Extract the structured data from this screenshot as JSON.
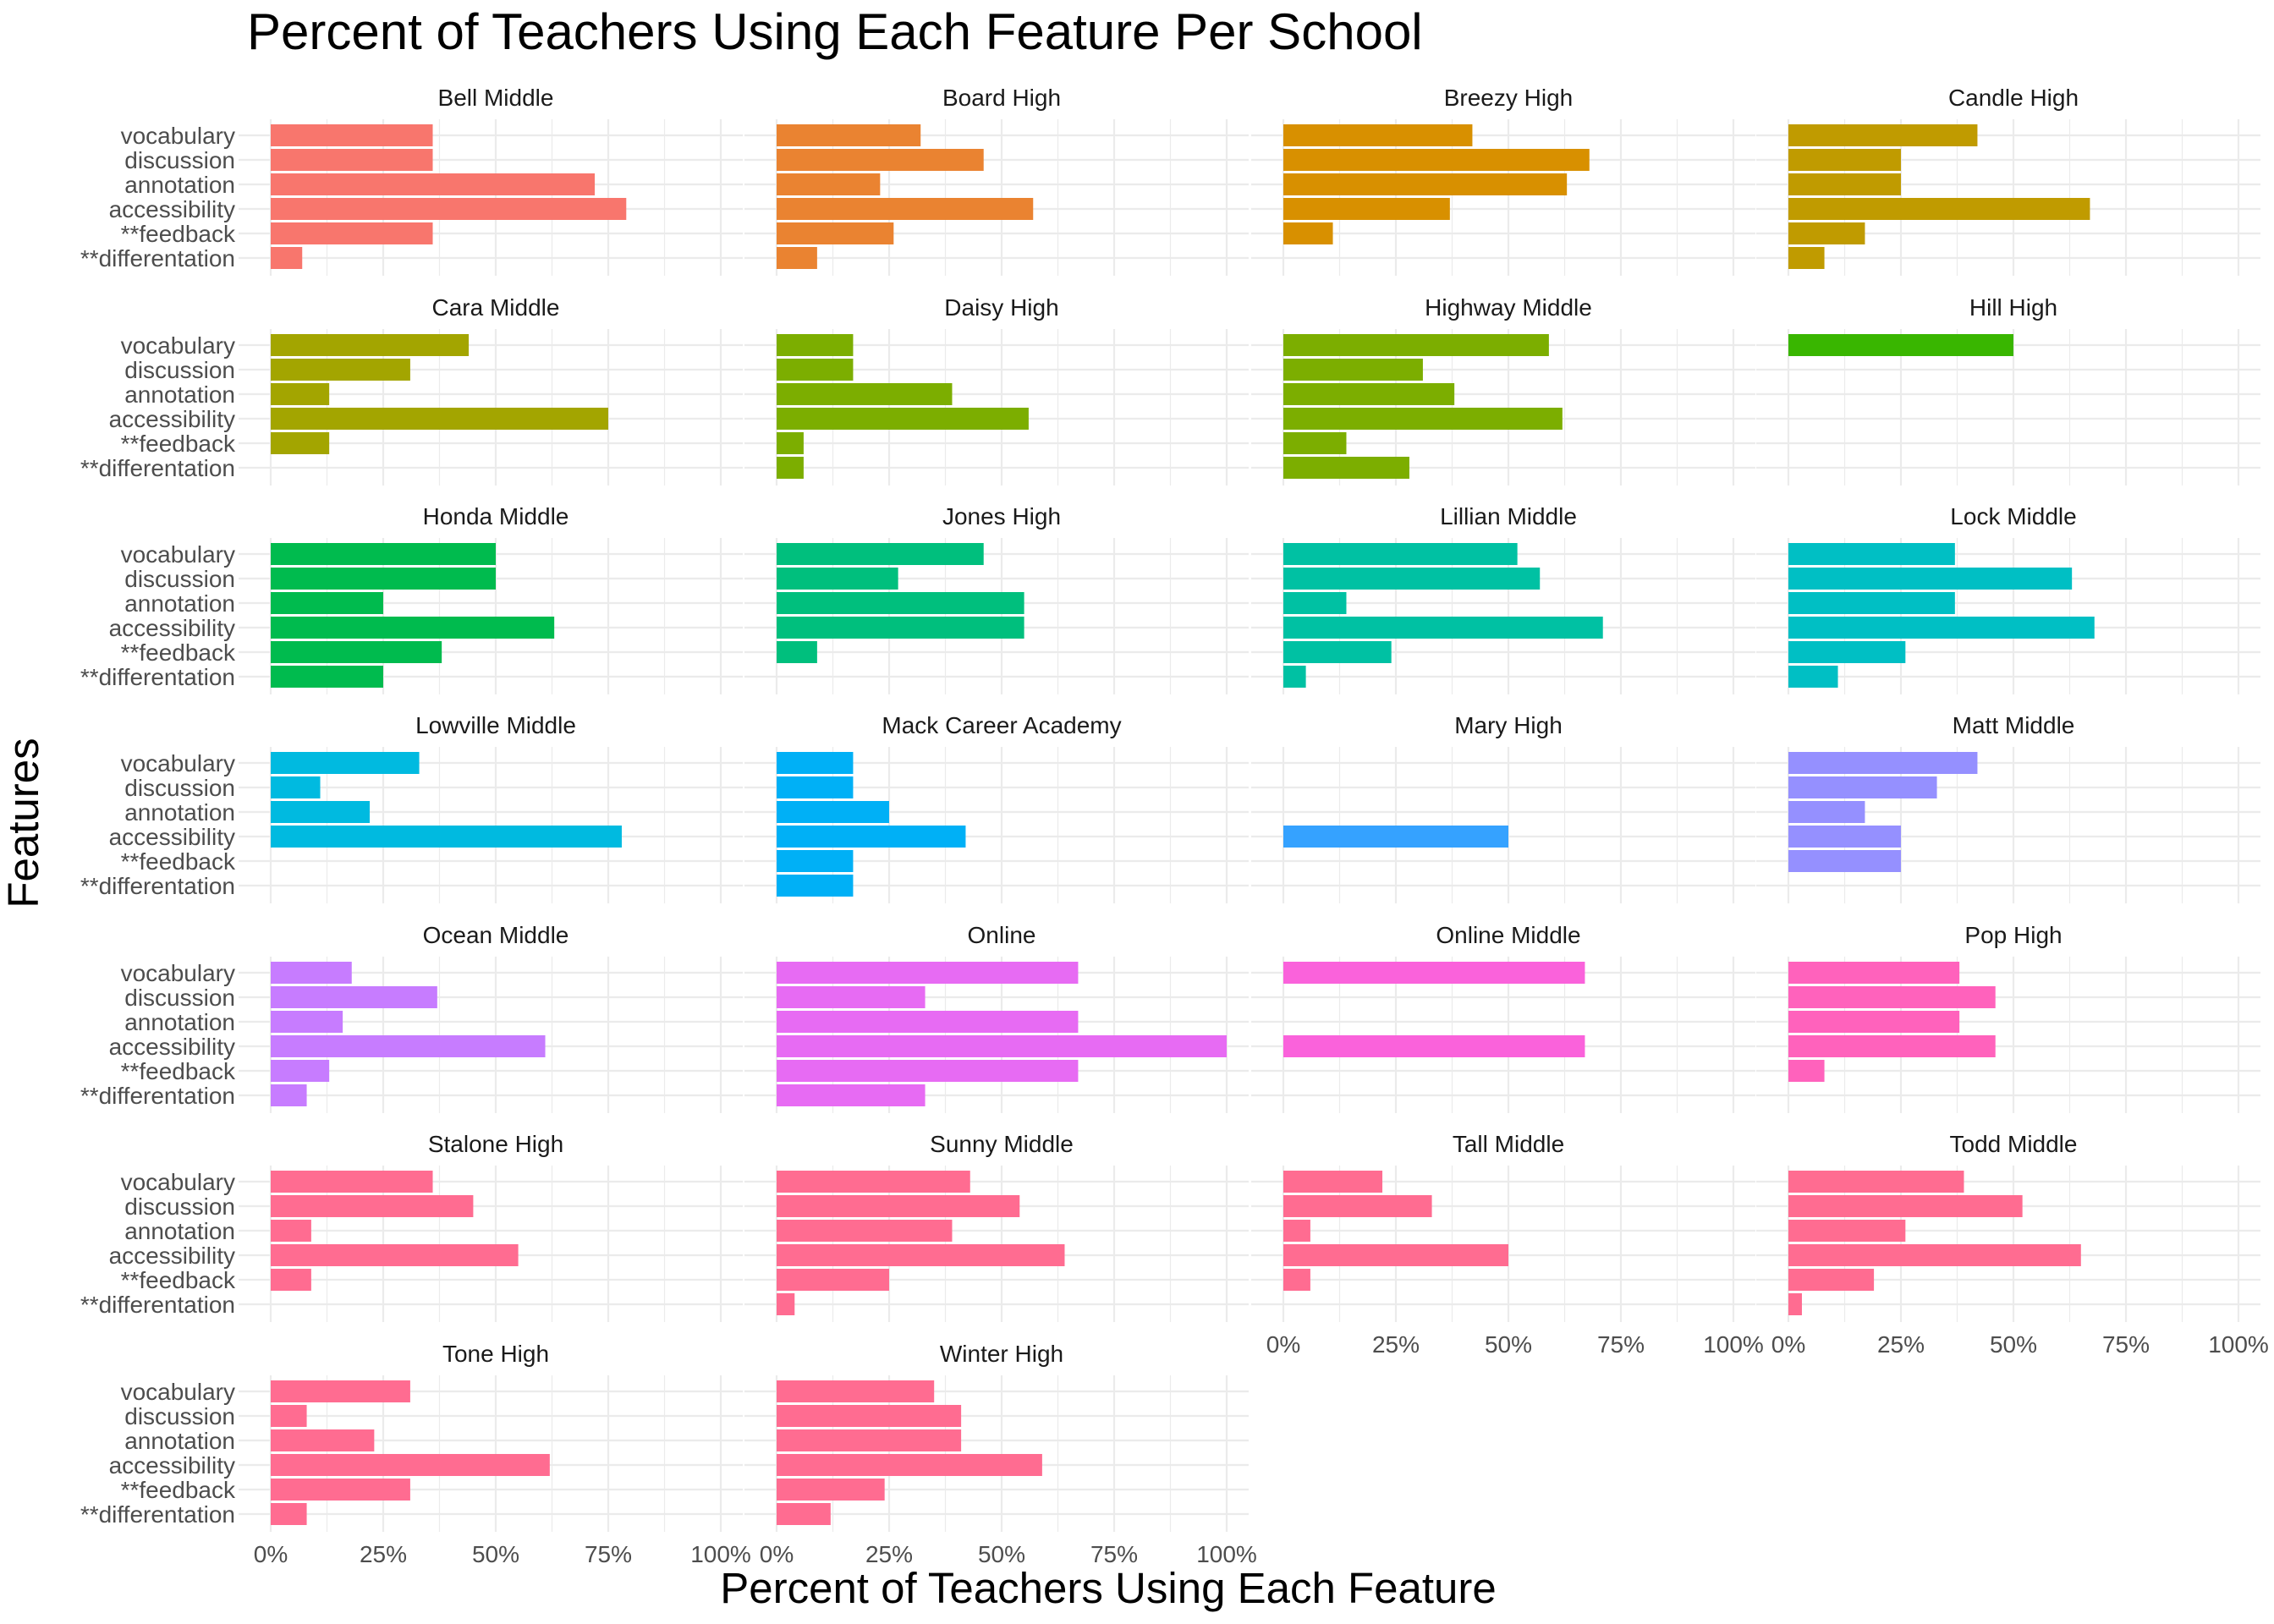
{
  "chart_data": {
    "type": "bar",
    "orientation": "horizontal",
    "title": "Percent of Teachers Using Each Feature Per School",
    "xlabel": "Percent of Teachers Using Each Feature",
    "ylabel": "Features",
    "xlim": [
      0,
      1
    ],
    "x_ticks": [
      "0%",
      "25%",
      "50%",
      "75%",
      "100%"
    ],
    "categories": [
      "vocabulary",
      "discussion",
      "annotation",
      "accessibility",
      "**feedback",
      "**differentation"
    ],
    "grid": true,
    "legend": "none",
    "facets": [
      {
        "name": "Bell Middle",
        "color": "#F8766D",
        "values": [
          0.36,
          0.36,
          0.72,
          0.79,
          0.36,
          0.07
        ]
      },
      {
        "name": "Board High",
        "color": "#EA8331",
        "values": [
          0.32,
          0.46,
          0.23,
          0.57,
          0.26,
          0.09
        ]
      },
      {
        "name": "Breezy High",
        "color": "#D89000",
        "values": [
          0.42,
          0.68,
          0.63,
          0.37,
          0.11,
          null
        ]
      },
      {
        "name": "Candle High",
        "color": "#C09B00",
        "values": [
          0.42,
          0.25,
          0.25,
          0.67,
          0.17,
          0.08
        ]
      },
      {
        "name": "Cara Middle",
        "color": "#A3A500",
        "values": [
          0.44,
          0.31,
          0.13,
          0.75,
          0.13,
          null
        ]
      },
      {
        "name": "Daisy High",
        "color": "#7CAE00",
        "values": [
          0.17,
          0.17,
          0.39,
          0.56,
          0.06,
          0.06
        ]
      },
      {
        "name": "Highway Middle",
        "color": "#7CAE00",
        "values": [
          0.59,
          0.31,
          0.38,
          0.62,
          0.14,
          0.28
        ]
      },
      {
        "name": "Hill High",
        "color": "#39B600",
        "values": [
          0.5,
          null,
          null,
          null,
          null,
          null
        ]
      },
      {
        "name": "Honda Middle",
        "color": "#00BB4E",
        "values": [
          0.5,
          0.5,
          0.25,
          0.63,
          0.38,
          0.25
        ]
      },
      {
        "name": "Jones High",
        "color": "#00BF7D",
        "values": [
          0.46,
          0.27,
          0.55,
          0.55,
          0.09,
          null
        ]
      },
      {
        "name": "Lillian Middle",
        "color": "#00C1A3",
        "values": [
          0.52,
          0.57,
          0.14,
          0.71,
          0.24,
          0.05
        ]
      },
      {
        "name": "Lock Middle",
        "color": "#00BFC4",
        "values": [
          0.37,
          0.63,
          0.37,
          0.68,
          0.26,
          0.11
        ]
      },
      {
        "name": "Lowville Middle",
        "color": "#00BAE0",
        "values": [
          0.33,
          0.11,
          0.22,
          0.78,
          null,
          null
        ]
      },
      {
        "name": "Mack Career Academy",
        "color": "#00B0F6",
        "values": [
          0.17,
          0.17,
          0.25,
          0.42,
          0.17,
          0.17
        ]
      },
      {
        "name": "Mary High",
        "color": "#35A2FF",
        "values": [
          null,
          null,
          null,
          0.5,
          null,
          null
        ]
      },
      {
        "name": "Matt Middle",
        "color": "#9590FF",
        "values": [
          0.42,
          0.33,
          0.17,
          0.25,
          0.25,
          null
        ]
      },
      {
        "name": "Ocean Middle",
        "color": "#C77CFF",
        "values": [
          0.18,
          0.37,
          0.16,
          0.61,
          0.13,
          0.08
        ]
      },
      {
        "name": "Online",
        "color": "#E76BF3",
        "values": [
          0.67,
          0.33,
          0.67,
          1.0,
          0.67,
          0.33
        ]
      },
      {
        "name": "Online Middle",
        "color": "#FA62DB",
        "values": [
          0.67,
          null,
          null,
          0.67,
          null,
          null
        ]
      },
      {
        "name": "Pop High",
        "color": "#FF62BC",
        "values": [
          0.38,
          0.46,
          0.38,
          0.46,
          0.08,
          null
        ]
      },
      {
        "name": "Stalone High",
        "color": "#FF6C91",
        "values": [
          0.36,
          0.45,
          0.09,
          0.55,
          0.09,
          null
        ]
      },
      {
        "name": "Sunny Middle",
        "color": "#FF6C91",
        "values": [
          0.43,
          0.54,
          0.39,
          0.64,
          0.25,
          0.04
        ]
      },
      {
        "name": "Tall Middle",
        "color": "#FF6C91",
        "values": [
          0.22,
          0.33,
          0.06,
          0.5,
          0.06,
          null
        ]
      },
      {
        "name": "Todd Middle",
        "color": "#FF6C91",
        "values": [
          0.39,
          0.52,
          0.26,
          0.65,
          0.19,
          0.03
        ]
      },
      {
        "name": "Tone High",
        "color": "#FF6C91",
        "values": [
          0.31,
          0.08,
          0.23,
          0.62,
          0.31,
          0.08
        ]
      },
      {
        "name": "Winter High",
        "color": "#FF6C91",
        "values": [
          0.35,
          0.41,
          0.41,
          0.59,
          0.24,
          0.12
        ]
      }
    ]
  }
}
